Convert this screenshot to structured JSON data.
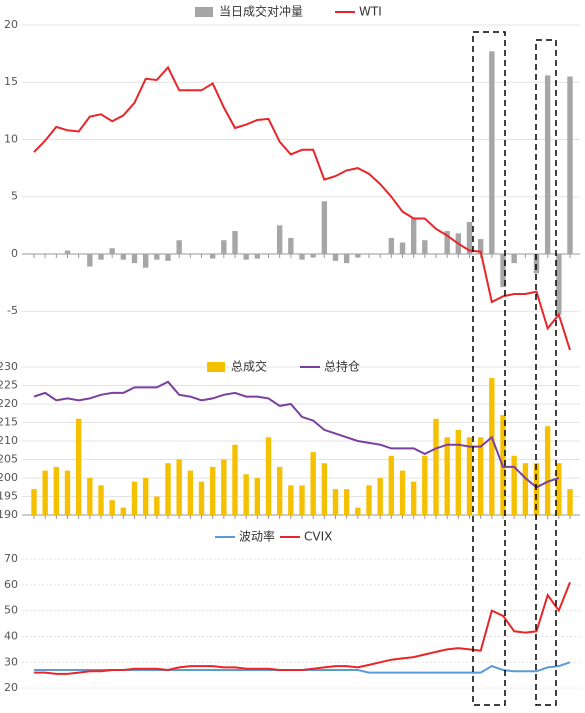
{
  "chart_data": [
    {
      "type": "bar",
      "ylim": [
        -9,
        20
      ],
      "yticks": [
        -5,
        0,
        5,
        10,
        15,
        20
      ],
      "grid": true,
      "categories": [
        null,
        null,
        null,
        null,
        null,
        null,
        null,
        null,
        null,
        null,
        null,
        null,
        null,
        null,
        null,
        null,
        null,
        null,
        null,
        null,
        null,
        null,
        null,
        null,
        null,
        null,
        null,
        null,
        null,
        null,
        null,
        null,
        null,
        null,
        null,
        null,
        null,
        null,
        null,
        null,
        null,
        null,
        null,
        null,
        null,
        null,
        null,
        null,
        null
      ],
      "series": [
        {
          "name": "当日成交对冲量",
          "type": "bar",
          "color": "#a6a6a6",
          "values": [
            0,
            0,
            0,
            0.3,
            0,
            -1.1,
            -0.5,
            0.5,
            -0.5,
            -0.8,
            -1.2,
            -0.5,
            -0.6,
            1.2,
            0,
            0,
            -0.4,
            1.2,
            2.0,
            -0.5,
            -0.4,
            0,
            2.5,
            1.4,
            -0.5,
            -0.3,
            4.6,
            -0.6,
            -0.8,
            -0.3,
            0,
            0,
            1.4,
            1.0,
            3.1,
            1.2,
            0,
            2.0,
            1.8,
            2.8,
            1.3,
            17.7,
            -2.9,
            -0.8,
            0,
            -1.7,
            15.6,
            -5.3,
            15.5
          ]
        },
        {
          "name": "WTI",
          "type": "line",
          "color": "#e8262a",
          "values": [
            8.9,
            9.9,
            11.1,
            10.8,
            10.7,
            12.0,
            12.2,
            11.6,
            12.1,
            13.2,
            15.3,
            15.2,
            16.3,
            14.3,
            14.3,
            14.3,
            14.9,
            12.8,
            11.0,
            11.3,
            11.7,
            11.8,
            9.8,
            8.7,
            9.1,
            9.1,
            6.5,
            6.8,
            7.3,
            7.5,
            7.0,
            6.1,
            5.0,
            3.7,
            3.1,
            3.1,
            2.2,
            1.6,
            0.9,
            0.3,
            0.2,
            -4.2,
            -3.7,
            -3.5,
            -3.5,
            -3.3,
            -6.5,
            -5.3,
            -8.4
          ]
        }
      ]
    },
    {
      "type": "bar",
      "ylim": [
        190,
        230
      ],
      "yticks": [
        190,
        195,
        200,
        205,
        210,
        215,
        220,
        225,
        230
      ],
      "grid": true,
      "categories": [
        null,
        null,
        null,
        null,
        null,
        null,
        null,
        null,
        null,
        null,
        null,
        null,
        null,
        null,
        null,
        null,
        null,
        null,
        null,
        null,
        null,
        null,
        null,
        null,
        null,
        null,
        null,
        null,
        null,
        null,
        null,
        null,
        null,
        null,
        null,
        null,
        null,
        null,
        null,
        null,
        null,
        null,
        null,
        null,
        null,
        null,
        null,
        null,
        null
      ],
      "series": [
        {
          "name": "总成交",
          "type": "bar",
          "color": "#f5c000",
          "values": [
            197,
            202,
            203,
            202,
            216,
            200,
            198,
            194,
            192,
            199,
            200,
            195,
            204,
            205,
            202,
            199,
            203,
            205,
            209,
            201,
            200,
            211,
            203,
            198,
            198,
            207,
            204,
            197,
            197,
            192,
            198,
            200,
            206,
            202,
            199,
            206,
            216,
            211,
            213,
            211,
            211,
            227,
            217,
            206,
            204,
            204,
            214,
            204,
            197
          ]
        },
        {
          "name": "总持仓",
          "type": "line",
          "color": "#7b3f9e",
          "values": [
            222,
            223,
            221,
            221.5,
            221,
            221.5,
            222.5,
            223,
            223,
            224.5,
            224.5,
            224.5,
            226,
            222.5,
            222,
            221,
            221.5,
            222.5,
            223,
            222,
            222,
            221.5,
            219.5,
            220,
            216.5,
            215.5,
            213,
            212,
            211,
            210,
            209.5,
            209,
            208,
            208,
            208,
            206.5,
            208,
            209,
            209,
            208.5,
            208.5,
            211,
            203,
            203,
            200,
            197.5,
            199,
            200,
            null
          ]
        }
      ]
    },
    {
      "type": "line",
      "ylim": [
        15,
        70
      ],
      "yticks": [
        20,
        30,
        40,
        50,
        60,
        70
      ],
      "grid": true,
      "categories": [
        null,
        null,
        null,
        null,
        null,
        null,
        null,
        null,
        null,
        null,
        null,
        null,
        null,
        null,
        null,
        null,
        null,
        null,
        null,
        null,
        null,
        null,
        null,
        null,
        null,
        null,
        null,
        null,
        null,
        null,
        null,
        null,
        null,
        null,
        null,
        null,
        null,
        null,
        null,
        null,
        null,
        null,
        null,
        null,
        null,
        null,
        null,
        null,
        null
      ],
      "series": [
        {
          "name": "波动率",
          "type": "line",
          "color": "#5b9bd5",
          "values": [
            27,
            27,
            27,
            27,
            27,
            27,
            27,
            27,
            27,
            27,
            27,
            27,
            27,
            27,
            27,
            27,
            27,
            27,
            27,
            27,
            27,
            27,
            27,
            27,
            27,
            27,
            27,
            27,
            27,
            27,
            26,
            26,
            26,
            26,
            26,
            26,
            26,
            26,
            26,
            26,
            26,
            28.5,
            27,
            26.5,
            26.5,
            26.5,
            28,
            28.5,
            30
          ]
        },
        {
          "name": "CVIX",
          "type": "line",
          "color": "#e8262a",
          "values": [
            26,
            26,
            25.5,
            25.5,
            26,
            26.5,
            26.5,
            27,
            27,
            27.5,
            27.5,
            27.5,
            27,
            28,
            28.5,
            28.5,
            28.5,
            28,
            28,
            27.5,
            27.5,
            27.5,
            27,
            27,
            27,
            27.5,
            28,
            28.5,
            28.5,
            28,
            29,
            30,
            31,
            31.5,
            32,
            33,
            34,
            35,
            35.5,
            35,
            34.5,
            50,
            48,
            42,
            41.5,
            42,
            56,
            50,
            61
          ]
        }
      ]
    }
  ]
}
